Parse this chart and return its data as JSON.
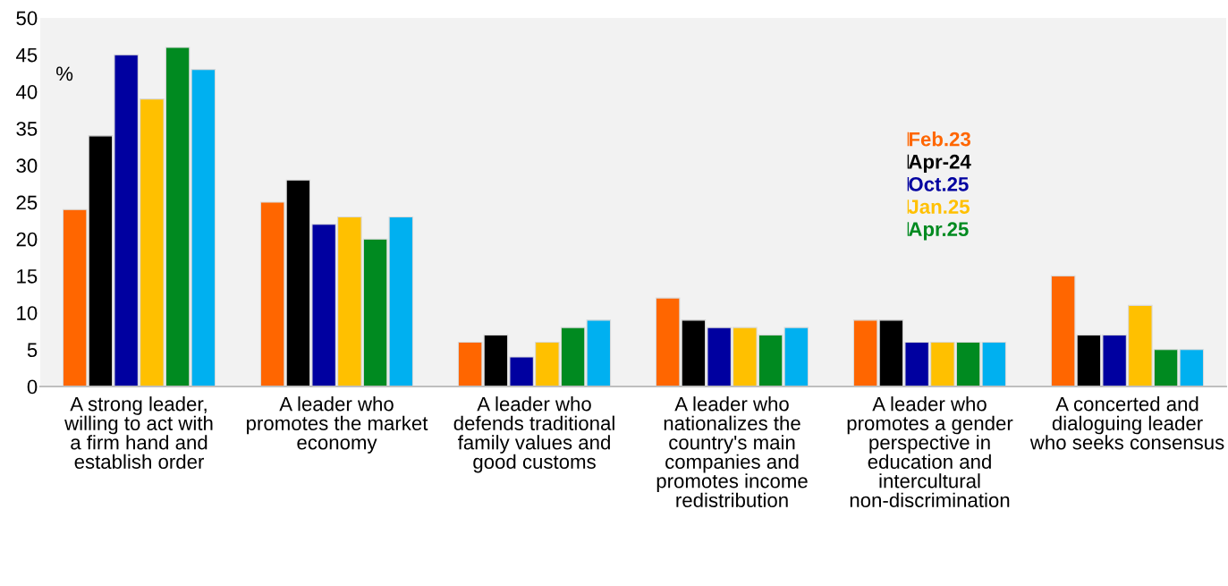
{
  "chart_data": {
    "type": "bar",
    "categories": [
      "A strong leader, willing to act with a firm hand and establish order",
      "A leader who promotes the market economy",
      "A leader who defends traditional family values and good customs",
      "A leader who nationalizes the country's main companies and promotes income redistribution",
      "A leader who promotes a gender perspective in education and intercultural non-discrimination",
      "A concerted and dialoguing leader who seeks consensus"
    ],
    "series": [
      {
        "name": "Feb.23",
        "color": "#ff6600",
        "values": [
          24,
          25,
          6,
          12,
          9,
          15
        ]
      },
      {
        "name": "Apr-24",
        "color": "#000000",
        "values": [
          34,
          28,
          7,
          9,
          9,
          7
        ]
      },
      {
        "name": "Oct.25",
        "color": "#0000a0",
        "values": [
          45,
          22,
          4,
          8,
          6,
          7
        ]
      },
      {
        "name": "Jan.25",
        "color": "#ffc000",
        "values": [
          39,
          23,
          6,
          8,
          6,
          11
        ]
      },
      {
        "name": "Apr.25",
        "color": "#008a20",
        "values": [
          46,
          20,
          8,
          7,
          6,
          5
        ]
      },
      {
        "color": "#00b0f0",
        "values": [
          43,
          23,
          9,
          8,
          6,
          5
        ]
      }
    ],
    "ylim": [
      0,
      50
    ],
    "yticks": [
      0,
      5,
      10,
      15,
      20,
      25,
      30,
      35,
      40,
      45,
      50
    ],
    "grid": false,
    "legend": "top right",
    "annotations": [
      "%"
    ]
  }
}
